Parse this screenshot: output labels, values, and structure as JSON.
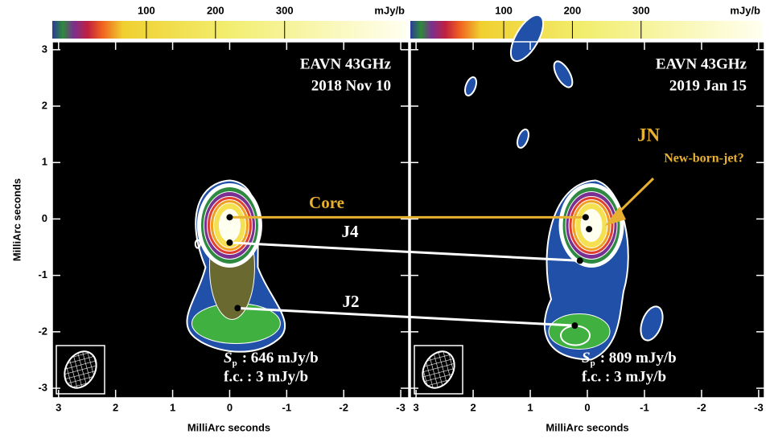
{
  "chart_data": [
    {
      "type": "image",
      "title": "EAVN 43GHz",
      "subtitle": "2018 Nov 10",
      "xlabel": "MilliArc seconds",
      "ylabel": "MilliArc seconds",
      "xlim": [
        3.11,
        -3.14
      ],
      "ylim": [
        -3.17,
        3.14
      ],
      "xticks": [
        3,
        2,
        1,
        0,
        -1,
        -2,
        -3
      ],
      "yticks": [
        3,
        2,
        1,
        0,
        -1,
        -2,
        -3
      ],
      "colorbar": {
        "lim": [
          -36,
          476
        ],
        "ticks": [
          100,
          200,
          300
        ],
        "unit": "mJy/b"
      },
      "components": {
        "x": [
          0,
          0,
          -0.14
        ],
        "y": [
          0.03,
          -0.42,
          -1.58
        ]
      },
      "component_labels": [
        "Core",
        "J4",
        "J2"
      ],
      "flux_symbol": "S",
      "flux_subscript": "p",
      "flux_text": ": 646 mJy/b",
      "fc_text": "f.c. : 3 mJy/b"
    },
    {
      "type": "image",
      "title": "EAVN 43GHz",
      "subtitle": "2019 Jan 15",
      "xlabel": "MilliArc seconds",
      "xlim": [
        3.1,
        -3.1
      ],
      "ylim": [
        -3.17,
        3.14
      ],
      "xticks": [
        3,
        2,
        1,
        0,
        -1,
        -2,
        -3
      ],
      "yticks": [
        3,
        2,
        1,
        0,
        -1,
        -2,
        -3
      ],
      "colorbar": {
        "lim": [
          -36,
          476
        ],
        "ticks": [
          100,
          200,
          300
        ],
        "unit": "mJy/b"
      },
      "components": {
        "x": [
          0.03,
          -0.03,
          0.13,
          0.22
        ],
        "y": [
          0.03,
          -0.18,
          -0.74,
          -1.89
        ]
      },
      "component_labels": [
        "JN",
        "New-born-jet?"
      ],
      "flux_symbol": "S",
      "flux_subscript": "p",
      "flux_text": ": 809 mJy/b",
      "fc_text": "f.c. : 3 mJy/b"
    }
  ]
}
